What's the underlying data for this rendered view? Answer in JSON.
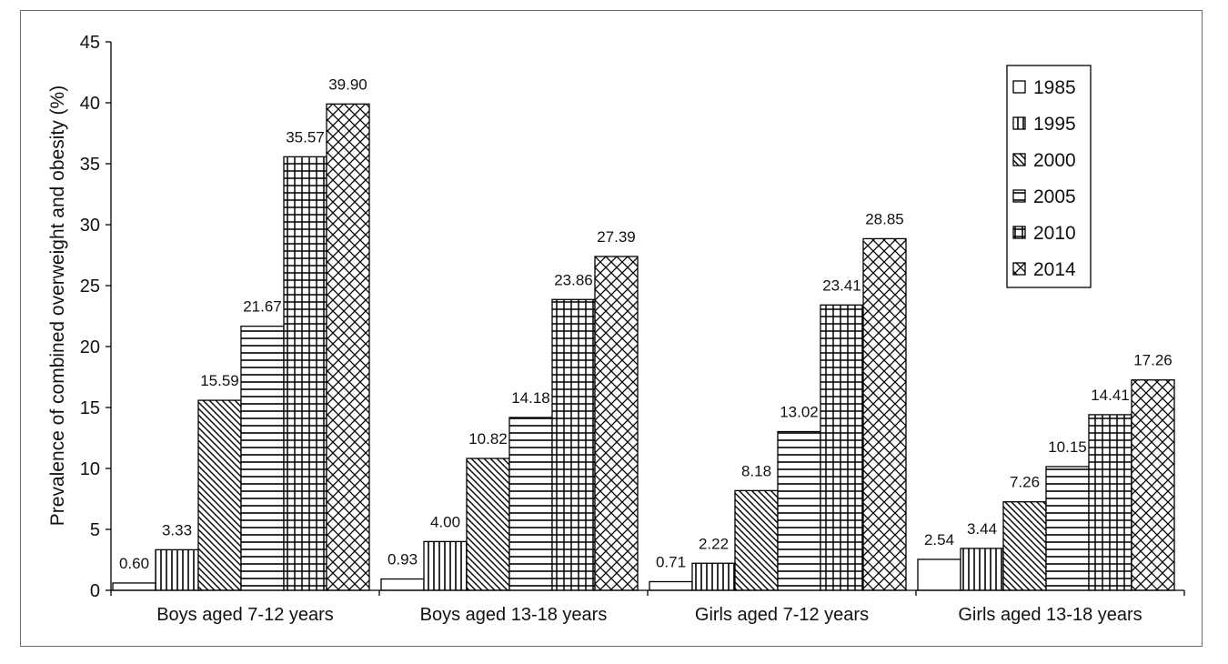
{
  "chart_data": {
    "type": "bar",
    "title": "",
    "xlabel": "",
    "ylabel": "Prevalence of combined overweight and obesity (%)",
    "ylim": [
      0,
      45
    ],
    "yticks": [
      0,
      5,
      10,
      15,
      20,
      25,
      30,
      35,
      40,
      45
    ],
    "grid": false,
    "legend_position": "top-right",
    "categories": [
      "Boys aged 7-12 years",
      "Boys aged 13-18 years",
      "Girls aged 7-12 years",
      "Girls aged 13-18 years"
    ],
    "series": [
      {
        "name": "1985",
        "pattern": "blank",
        "values": [
          0.6,
          0.93,
          0.71,
          2.54
        ],
        "labels": [
          "0.60",
          "0.93",
          "0.71",
          "2.54"
        ]
      },
      {
        "name": "1995",
        "pattern": "vertical-lines",
        "values": [
          3.33,
          4.0,
          2.22,
          3.44
        ],
        "labels": [
          "3.33",
          "4.00",
          "2.22",
          "3.44"
        ]
      },
      {
        "name": "2000",
        "pattern": "diagonal-lines",
        "values": [
          15.59,
          10.82,
          8.18,
          7.26
        ],
        "labels": [
          "15.59",
          "10.82",
          "8.18",
          "7.26"
        ]
      },
      {
        "name": "2005",
        "pattern": "horizontal-lines",
        "values": [
          21.67,
          14.18,
          13.02,
          10.15
        ],
        "labels": [
          "21.67",
          "14.18",
          "13.02",
          "10.15"
        ]
      },
      {
        "name": "2010",
        "pattern": "grid",
        "values": [
          35.57,
          23.86,
          23.41,
          14.41
        ],
        "labels": [
          "35.57",
          "23.86",
          "23.41",
          "14.41"
        ]
      },
      {
        "name": "2014",
        "pattern": "crosshatch",
        "values": [
          39.9,
          27.39,
          28.85,
          17.26
        ],
        "labels": [
          "39.90",
          "27.39",
          "28.85",
          "17.26"
        ]
      }
    ]
  }
}
